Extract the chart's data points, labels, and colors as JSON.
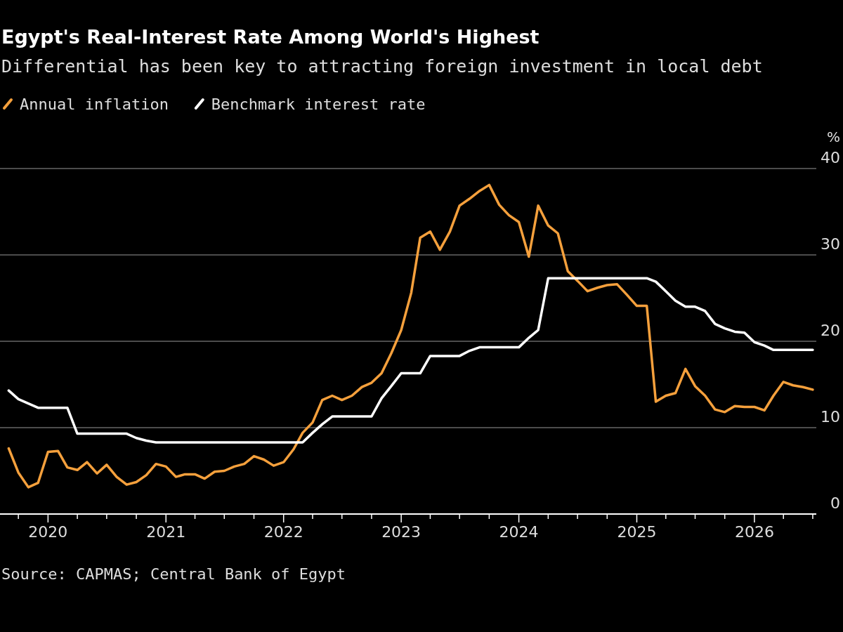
{
  "chart_data": {
    "type": "line",
    "title": "Egypt's Real-Interest Rate Among World's Highest",
    "subtitle": "Differential has been key to attracting foreign investment in local debt",
    "ylabel": "%",
    "annotations": [
      "Source: CAPMAS; Central Bank of Egypt"
    ],
    "x": [
      "2019-09",
      "2019-10",
      "2019-11",
      "2019-12",
      "2020-01",
      "2020-02",
      "2020-03",
      "2020-04",
      "2020-05",
      "2020-06",
      "2020-07",
      "2020-08",
      "2020-09",
      "2020-10",
      "2020-11",
      "2020-12",
      "2021-01",
      "2021-02",
      "2021-03",
      "2021-04",
      "2021-05",
      "2021-06",
      "2021-07",
      "2021-08",
      "2021-09",
      "2021-10",
      "2021-11",
      "2021-12",
      "2022-01",
      "2022-02",
      "2022-03",
      "2022-04",
      "2022-05",
      "2022-06",
      "2022-07",
      "2022-08",
      "2022-09",
      "2022-10",
      "2022-11",
      "2022-12",
      "2023-01",
      "2023-02",
      "2023-03",
      "2023-04",
      "2023-05",
      "2023-06",
      "2023-07",
      "2023-08",
      "2023-09",
      "2023-10",
      "2023-11",
      "2023-12",
      "2024-01",
      "2024-02",
      "2024-03",
      "2024-04",
      "2024-05",
      "2024-06",
      "2024-07",
      "2024-08",
      "2024-09",
      "2024-10",
      "2024-11",
      "2024-12",
      "2025-01",
      "2025-02",
      "2025-03",
      "2025-04",
      "2025-05",
      "2025-06",
      "2025-07",
      "2025-08",
      "2025-09",
      "2025-10",
      "2025-11",
      "2025-12",
      "2026-01",
      "2026-02",
      "2026-03",
      "2026-04",
      "2026-05",
      "2026-06",
      "2026-07"
    ],
    "series": [
      {
        "name": "Annual inflation",
        "color": "#f5a03c",
        "values": [
          7.6,
          4.8,
          3.1,
          3.6,
          7.2,
          7.3,
          5.4,
          5.1,
          6.0,
          4.7,
          5.7,
          4.3,
          3.4,
          3.7,
          4.5,
          5.8,
          5.5,
          4.3,
          4.6,
          4.6,
          4.1,
          4.9,
          5.0,
          5.5,
          5.8,
          6.7,
          6.3,
          5.6,
          6.0,
          7.5,
          9.4,
          10.6,
          13.2,
          13.7,
          13.2,
          13.7,
          14.7,
          15.2,
          16.3,
          18.6,
          21.3,
          25.6,
          32.0,
          32.7,
          30.6,
          32.7,
          35.7,
          36.5,
          37.4,
          38.1,
          35.8,
          34.6,
          33.8,
          29.8,
          35.7,
          33.4,
          32.5,
          28.1,
          27.0,
          25.8,
          26.2,
          26.5,
          26.6,
          25.4,
          24.1,
          24.1,
          13.0,
          13.7,
          14.0,
          16.8,
          14.8,
          13.7,
          12.1,
          11.8,
          12.5,
          12.4,
          12.4,
          12.0,
          13.7,
          15.3,
          14.9,
          14.7,
          14.4
        ]
      },
      {
        "name": "Benchmark interest rate",
        "color": "#ffffff",
        "values": [
          14.3,
          13.3,
          12.8,
          12.3,
          12.3,
          12.3,
          12.3,
          9.3,
          9.3,
          9.3,
          9.3,
          9.3,
          9.3,
          8.8,
          8.5,
          8.3,
          8.3,
          8.3,
          8.3,
          8.3,
          8.3,
          8.3,
          8.3,
          8.3,
          8.3,
          8.3,
          8.3,
          8.3,
          8.3,
          8.3,
          8.3,
          9.4,
          10.4,
          11.3,
          11.3,
          11.3,
          11.3,
          11.3,
          13.4,
          14.8,
          16.3,
          16.3,
          16.3,
          18.3,
          18.3,
          18.3,
          18.3,
          18.9,
          19.3,
          19.3,
          19.3,
          19.3,
          19.3,
          20.4,
          21.3,
          27.3,
          27.3,
          27.3,
          27.3,
          27.3,
          27.3,
          27.3,
          27.3,
          27.3,
          27.3,
          27.3,
          26.9,
          25.8,
          24.7,
          24.0,
          24.0,
          23.5,
          22.0,
          21.5,
          21.1,
          21.0,
          19.9,
          19.5,
          19.0,
          19.0,
          19.0,
          19.0,
          19.0
        ]
      }
    ],
    "xlim": [
      "2019-08-05",
      "2026-07-12"
    ],
    "xticks": [
      {
        "value": "2019-10",
        "label": null
      },
      "2020",
      {
        "value": "2020-04",
        "label": null
      },
      {
        "value": "2020-07",
        "label": null
      },
      {
        "value": "2020-10",
        "label": null
      },
      "2021",
      {
        "value": "2021-04",
        "label": null
      },
      {
        "value": "2021-07",
        "label": null
      },
      {
        "value": "2021-10",
        "label": null
      },
      "2022",
      {
        "value": "2022-04",
        "label": null
      },
      {
        "value": "2022-07",
        "label": null
      },
      {
        "value": "2022-10",
        "label": null
      },
      "2023",
      {
        "value": "2023-04",
        "label": null
      },
      {
        "value": "2023-07",
        "label": null
      },
      {
        "value": "2023-10",
        "label": null
      },
      "2024",
      {
        "value": "2024-04",
        "label": null
      },
      {
        "value": "2024-07",
        "label": null
      },
      {
        "value": "2024-10",
        "label": null
      },
      "2025",
      {
        "value": "2025-04",
        "label": null
      },
      {
        "value": "2025-07",
        "label": null
      },
      {
        "value": "2025-10",
        "label": null
      },
      "2026",
      {
        "value": "2026-04",
        "label": null
      },
      {
        "value": "2026-07",
        "label": null
      }
    ],
    "ylim": [
      0,
      40
    ],
    "yticks": [
      0,
      10,
      20,
      30,
      40
    ],
    "grid": "y",
    "legend": "top left",
    "line_style": "solid",
    "marker": "none"
  }
}
